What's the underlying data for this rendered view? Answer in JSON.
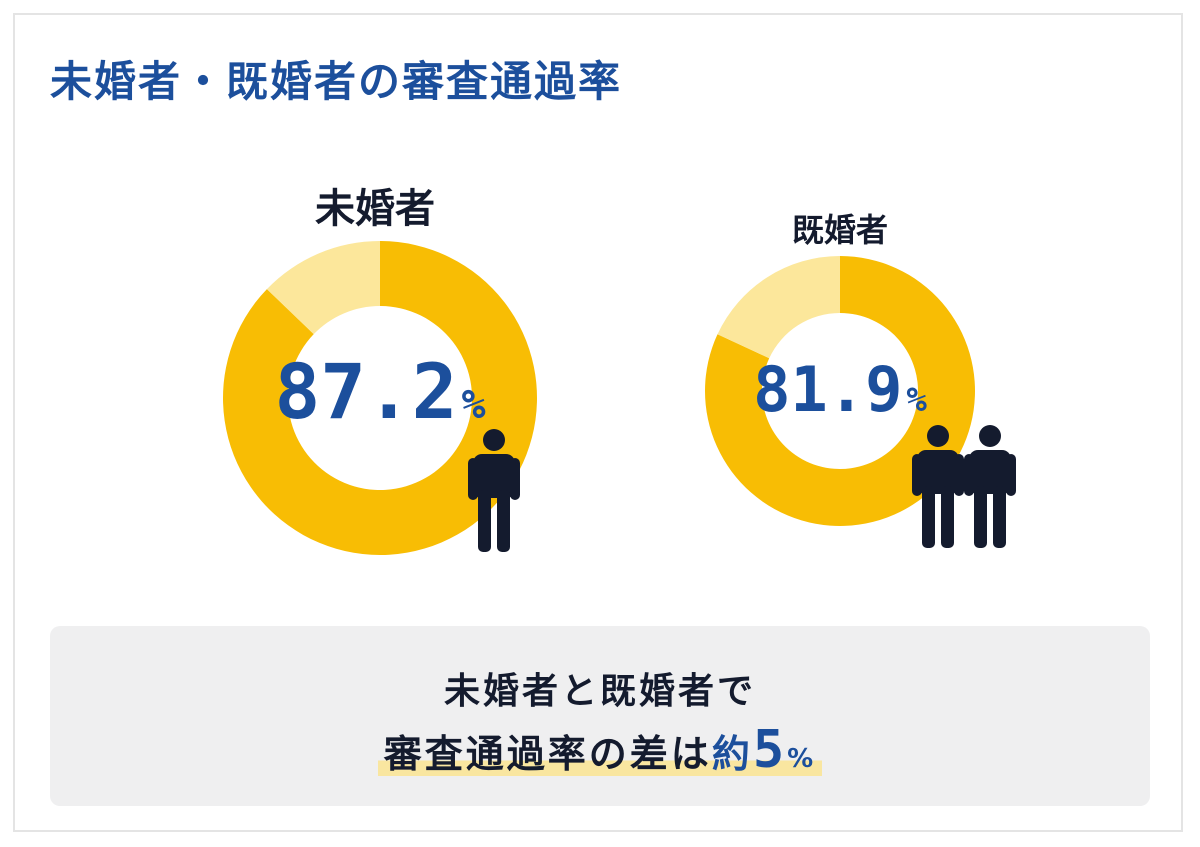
{
  "page": {
    "title": "未婚者・既婚者の審査通過率"
  },
  "colors": {
    "title_blue": "#1c4f9c",
    "donut_main": "#f8bd04",
    "donut_rest": "#fce79b",
    "figure": "#141b2e",
    "summary_bg": "#efeff0",
    "highlight": "#f9e6a0"
  },
  "chart_data": [
    {
      "type": "pie",
      "title": "未婚者",
      "value_text": "87.2",
      "unit": "%",
      "values": [
        87.2,
        12.8
      ],
      "icon": "single-person-icon"
    },
    {
      "type": "pie",
      "title": "既婚者",
      "value_text": "81.9",
      "unit": "%",
      "values": [
        81.9,
        18.1
      ],
      "icon": "two-people-icon"
    }
  ],
  "summary": {
    "line1": "未婚者と既婚者で",
    "line2_main": "審査通過率の差は",
    "line2_approx": "約",
    "line2_number": "5",
    "line2_unit": "%"
  }
}
